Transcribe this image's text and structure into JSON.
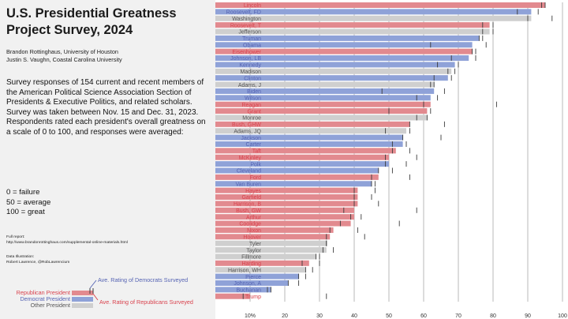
{
  "header": {
    "title_line1": "U.S. Presidential Greatness",
    "title_line2": "Project Survey, 2024",
    "author1": "Brandon Rottinghaus, University of Houston",
    "author2": "Justin S. Vaughn, Coastal Carolina University"
  },
  "description": "Survey responses of 154 current and recent members of the American Political Science Association Section of Presidents & Executive Politics, and related scholars. Survey was taken between Nov. 15 and Dec. 31, 2023. Respondents rated each president's overall greatness on a scale of 0 to 100, and responses were averaged:",
  "scale": {
    "line1": "0 = failure",
    "line2": "50 = average",
    "line3": "100 = great"
  },
  "report": {
    "label": "Full report:",
    "url": "http://www.brandonrottinghaus.com/supplemental-online-materials.html"
  },
  "credits": {
    "label": "Data Illustration:",
    "name": "Robert Lawrence, @RobLawrencium"
  },
  "legend": {
    "republican": "Republican President",
    "democrat": "Democrat President",
    "other": "Other President",
    "dem_avg": "Ave. Rating of Democrats Surveyed",
    "rep_avg": "Ave. Rating of Republicans Surveyed"
  },
  "colors": {
    "republican": "#e28a8f",
    "democrat": "#8fa2d8",
    "other": "#cfcfcf",
    "rep_text": "#d9424d",
    "dem_text": "#5563b3",
    "other_text": "#555555",
    "grid": "#8a8a8a"
  },
  "chart_data": {
    "type": "bar",
    "orientation": "horizontal",
    "xlim": [
      0,
      100
    ],
    "xticks": [
      "10%",
      "20",
      "30",
      "40",
      "50",
      "60",
      "70",
      "80",
      "90",
      "100"
    ],
    "xtick_values": [
      10,
      20,
      30,
      40,
      50,
      60,
      70,
      80,
      90,
      100
    ],
    "grid": true,
    "presidents": [
      {
        "name": "Lincoln",
        "party": "R",
        "score": 95,
        "dem_avg": 94,
        "rep_avg": 95
      },
      {
        "name": "Roosevelt, FD",
        "party": "D",
        "score": 91,
        "dem_avg": 93,
        "rep_avg": 87
      },
      {
        "name": "Washington",
        "party": "O",
        "score": 91,
        "dem_avg": 90,
        "rep_avg": 97
      },
      {
        "name": "Roosevelt, T",
        "party": "R",
        "score": 79,
        "dem_avg": 80,
        "rep_avg": 77
      },
      {
        "name": "Jefferson",
        "party": "O",
        "score": 79,
        "dem_avg": 77,
        "rep_avg": 80
      },
      {
        "name": "Truman",
        "party": "D",
        "score": 76,
        "dem_avg": 77,
        "rep_avg": 76
      },
      {
        "name": "Obama",
        "party": "D",
        "score": 74,
        "dem_avg": 78,
        "rep_avg": 62
      },
      {
        "name": "Eisenhower",
        "party": "R",
        "score": 74,
        "dem_avg": 74,
        "rep_avg": 75
      },
      {
        "name": "Johnson, LB",
        "party": "D",
        "score": 73,
        "dem_avg": 75,
        "rep_avg": 68
      },
      {
        "name": "Kennedy",
        "party": "D",
        "score": 69,
        "dem_avg": 70,
        "rep_avg": 64
      },
      {
        "name": "Madison",
        "party": "O",
        "score": 68,
        "dem_avg": 69,
        "rep_avg": 67
      },
      {
        "name": "Clinton",
        "party": "D",
        "score": 67,
        "dem_avg": 68,
        "rep_avg": 63
      },
      {
        "name": "Adams, J",
        "party": "O",
        "score": 63,
        "dem_avg": 63,
        "rep_avg": 62
      },
      {
        "name": "Biden",
        "party": "D",
        "score": 63,
        "dem_avg": 66,
        "rep_avg": 48
      },
      {
        "name": "Wilson",
        "party": "D",
        "score": 62,
        "dem_avg": 64,
        "rep_avg": 58
      },
      {
        "name": "Reagan",
        "party": "R",
        "score": 62,
        "dem_avg": 60,
        "rep_avg": 81
      },
      {
        "name": "Grant",
        "party": "R",
        "score": 61,
        "dem_avg": 62,
        "rep_avg": 50
      },
      {
        "name": "Monroe",
        "party": "O",
        "score": 61,
        "dem_avg": 61,
        "rep_avg": 58
      },
      {
        "name": "Bush, GHW",
        "party": "R",
        "score": 56,
        "dem_avg": 56,
        "rep_avg": 66
      },
      {
        "name": "Adams, JQ",
        "party": "O",
        "score": 55,
        "dem_avg": 56,
        "rep_avg": 49
      },
      {
        "name": "Jackson",
        "party": "D",
        "score": 54,
        "dem_avg": 54,
        "rep_avg": 65
      },
      {
        "name": "Carter",
        "party": "D",
        "score": 54,
        "dem_avg": 55,
        "rep_avg": 51
      },
      {
        "name": "Taft",
        "party": "R",
        "score": 52,
        "dem_avg": 51,
        "rep_avg": 56
      },
      {
        "name": "McKinley",
        "party": "R",
        "score": 50,
        "dem_avg": 49,
        "rep_avg": 58
      },
      {
        "name": "Polk",
        "party": "D",
        "score": 50,
        "dem_avg": 49,
        "rep_avg": 55
      },
      {
        "name": "Cleveland",
        "party": "D",
        "score": 47,
        "dem_avg": 47,
        "rep_avg": 51
      },
      {
        "name": "Ford",
        "party": "R",
        "score": 47,
        "dem_avg": 45,
        "rep_avg": 56
      },
      {
        "name": "Van Buren",
        "party": "D",
        "score": 45,
        "dem_avg": 45,
        "rep_avg": 46
      },
      {
        "name": "Hayes",
        "party": "R",
        "score": 41,
        "dem_avg": 40,
        "rep_avg": 46
      },
      {
        "name": "Garfield",
        "party": "R",
        "score": 41,
        "dem_avg": 40,
        "rep_avg": 45
      },
      {
        "name": "Harrison, B",
        "party": "R",
        "score": 41,
        "dem_avg": 40,
        "rep_avg": 47
      },
      {
        "name": "Bush, GW",
        "party": "R",
        "score": 40,
        "dem_avg": 37,
        "rep_avg": 58
      },
      {
        "name": "Arthur",
        "party": "R",
        "score": 40,
        "dem_avg": 39,
        "rep_avg": 42
      },
      {
        "name": "Coolidge",
        "party": "R",
        "score": 39,
        "dem_avg": 36,
        "rep_avg": 53
      },
      {
        "name": "Nixon",
        "party": "R",
        "score": 34,
        "dem_avg": 33,
        "rep_avg": 41
      },
      {
        "name": "Hoover",
        "party": "R",
        "score": 33,
        "dem_avg": 32,
        "rep_avg": 43
      },
      {
        "name": "Tyler",
        "party": "O",
        "score": 32,
        "dem_avg": 32,
        "rep_avg": 32
      },
      {
        "name": "Taylor",
        "party": "O",
        "score": 32,
        "dem_avg": 31,
        "rep_avg": 34
      },
      {
        "name": "Fillmore",
        "party": "O",
        "score": 29,
        "dem_avg": 29,
        "rep_avg": 30
      },
      {
        "name": "Harding",
        "party": "R",
        "score": 27,
        "dem_avg": 25,
        "rep_avg": 30
      },
      {
        "name": "Harrison, WH",
        "party": "O",
        "score": 26,
        "dem_avg": 26,
        "rep_avg": 28
      },
      {
        "name": "Pierce",
        "party": "D",
        "score": 24,
        "dem_avg": 24,
        "rep_avg": 26
      },
      {
        "name": "Johnson, A",
        "party": "D",
        "score": 21,
        "dem_avg": 21,
        "rep_avg": 24
      },
      {
        "name": "Buchanan",
        "party": "D",
        "score": 16,
        "dem_avg": 16,
        "rep_avg": 15
      },
      {
        "name": "Trump",
        "party": "R",
        "score": 10,
        "dem_avg": 8,
        "rep_avg": 32
      }
    ]
  }
}
